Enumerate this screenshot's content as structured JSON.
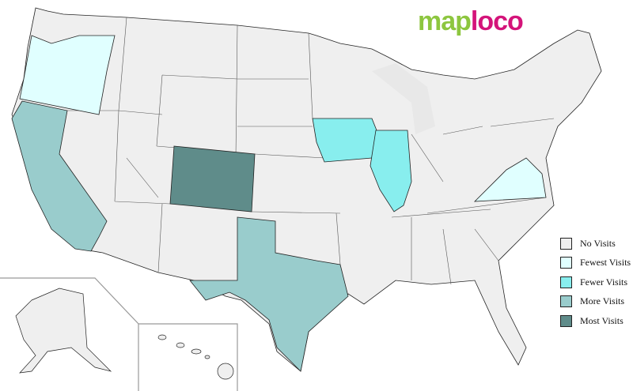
{
  "logo": {
    "part1": "map",
    "part2": "loco"
  },
  "legend": [
    {
      "label": "No Visits",
      "color": "#efefef"
    },
    {
      "label": "Fewest Visits",
      "color": "#e0ffff"
    },
    {
      "label": "Fewer Visits",
      "color": "#88eeee"
    },
    {
      "label": "More Visits",
      "color": "#99cccc"
    },
    {
      "label": "Most Visits",
      "color": "#5f8c8a"
    }
  ],
  "regions": [
    {
      "id": "oregon",
      "level": 1
    },
    {
      "id": "california",
      "level": 3
    },
    {
      "id": "colorado",
      "level": 4
    },
    {
      "id": "texas",
      "level": 3
    },
    {
      "id": "iowa",
      "level": 2
    },
    {
      "id": "illinois",
      "level": 2
    },
    {
      "id": "virginia",
      "level": 1
    }
  ]
}
